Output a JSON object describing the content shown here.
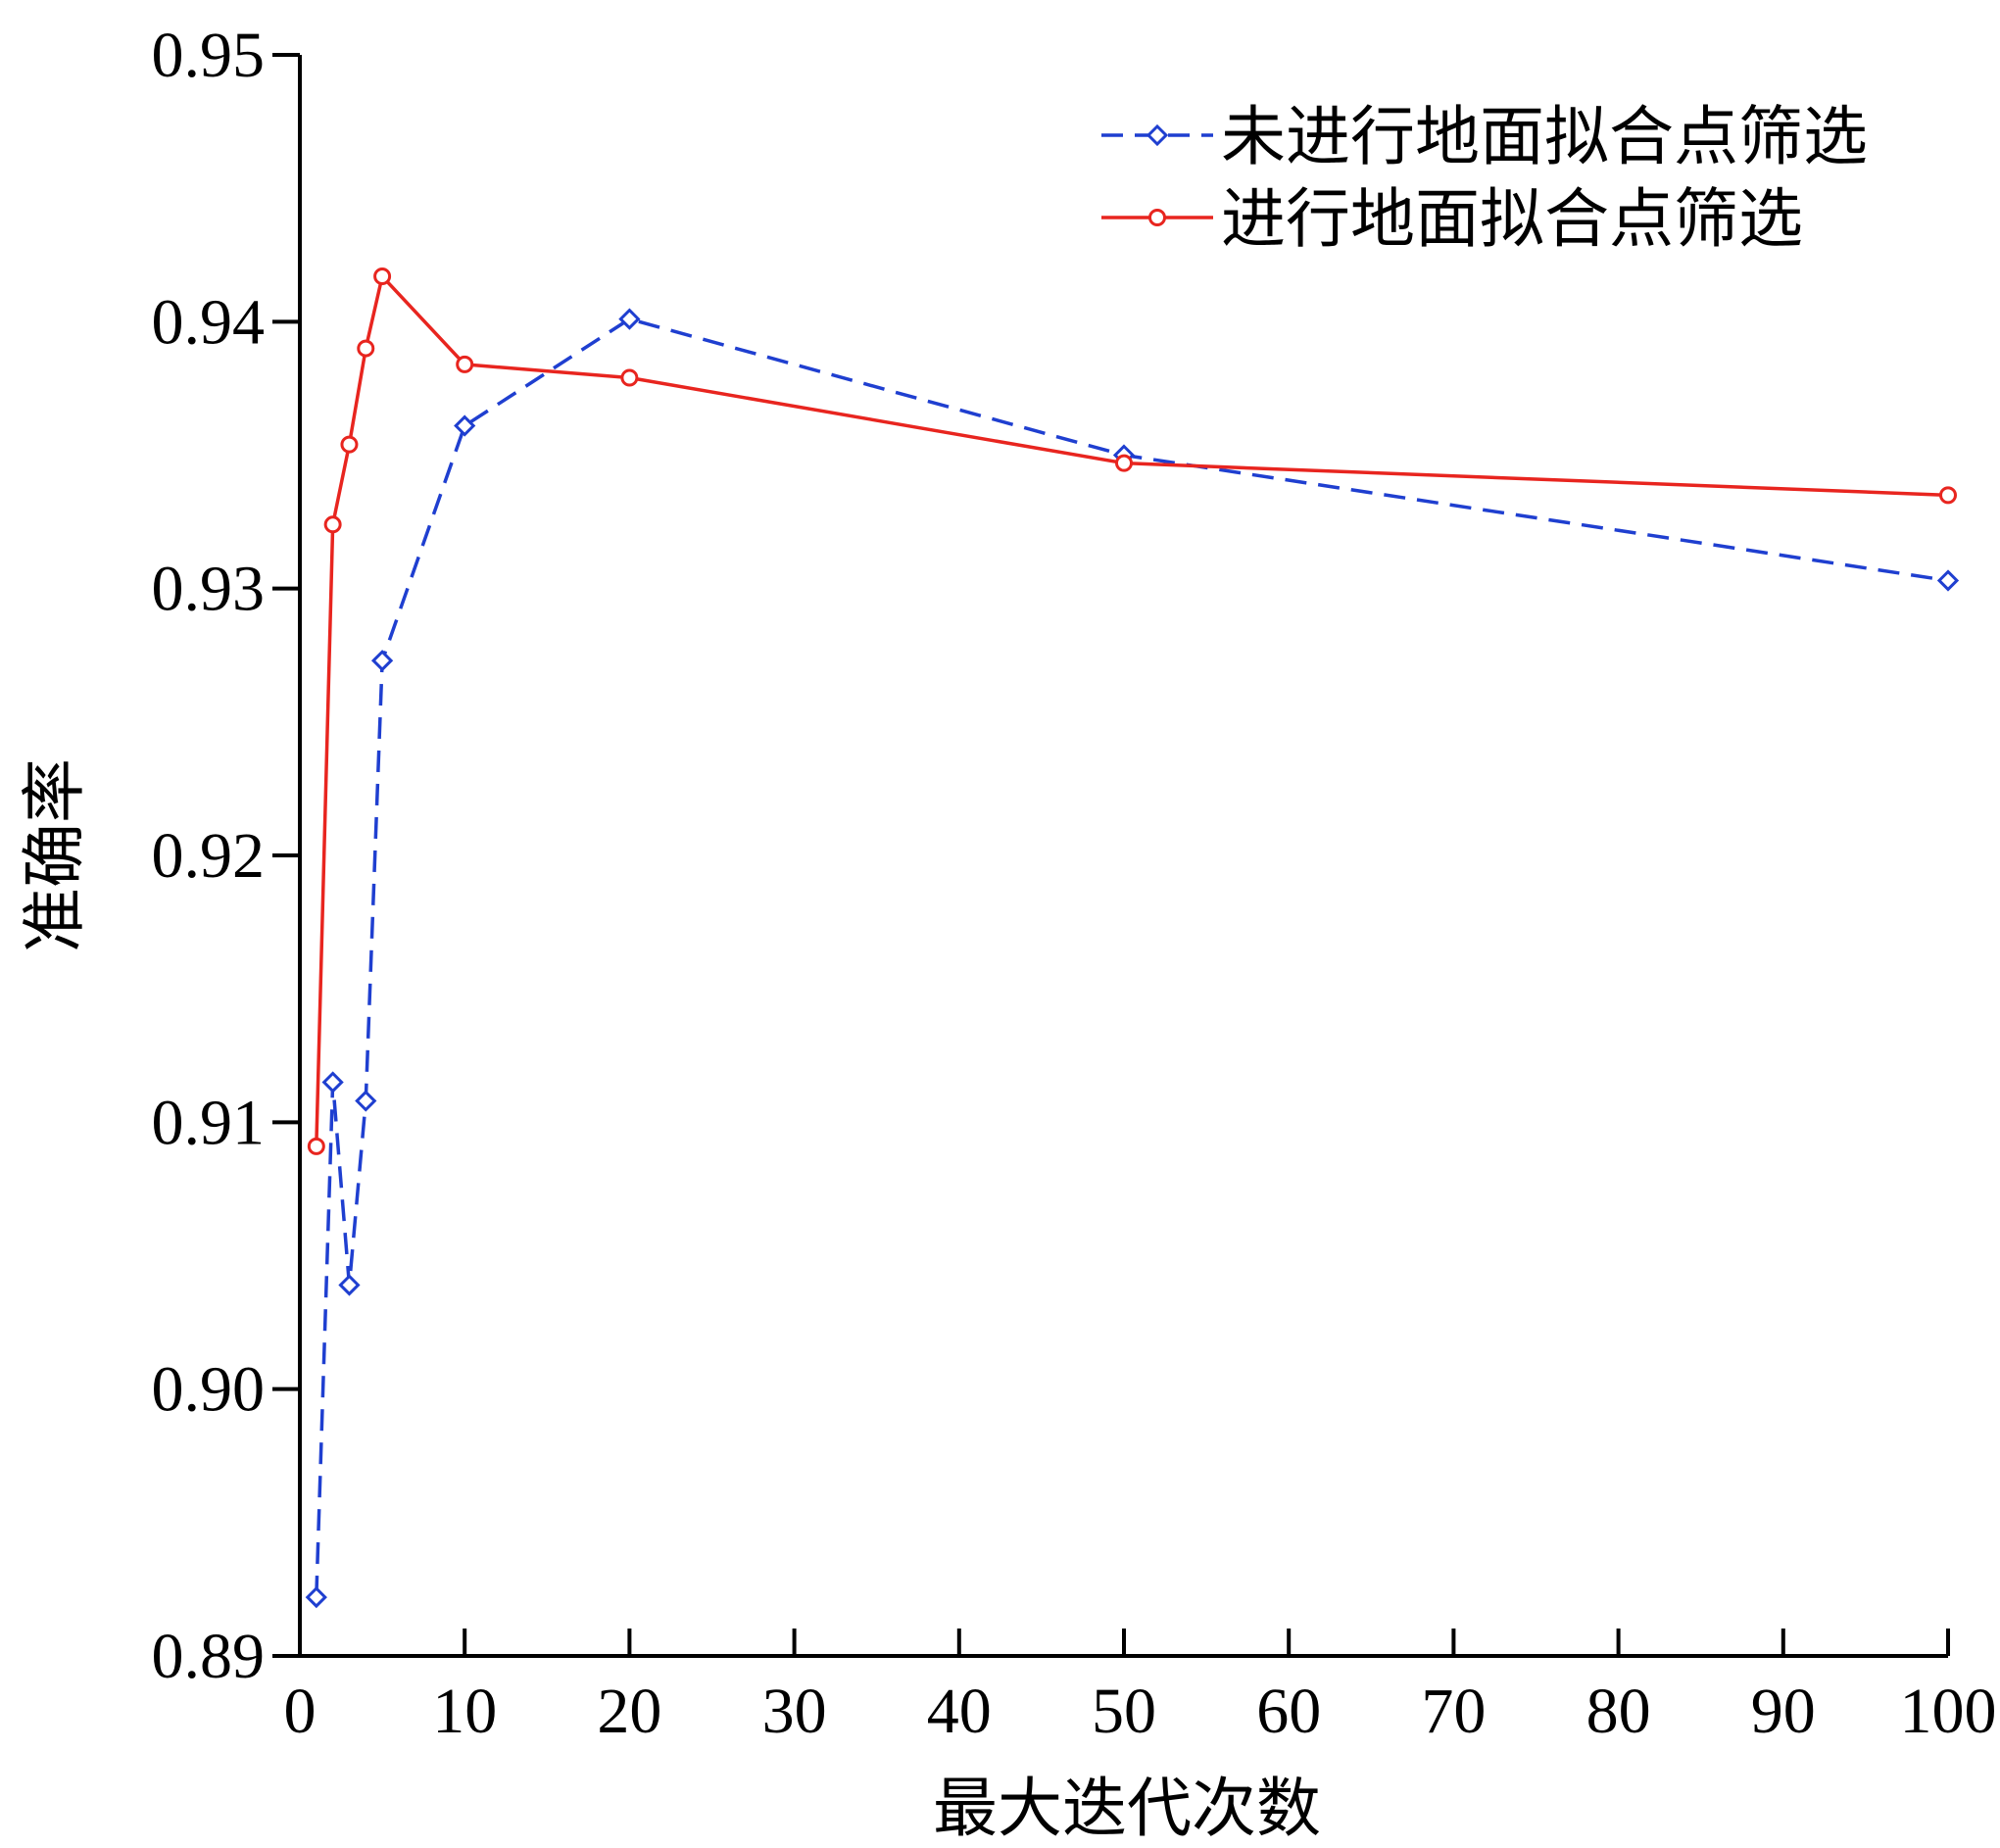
{
  "chart_data": {
    "type": "line",
    "title": "",
    "xlabel": "最大迭代次数",
    "ylabel": "准确率",
    "xlim": [
      0,
      100
    ],
    "ylim": [
      0.89,
      0.95
    ],
    "xticks": [
      0,
      10,
      20,
      30,
      40,
      50,
      60,
      70,
      80,
      90,
      100
    ],
    "xtick_labels": [
      "0",
      "10",
      "20",
      "30",
      "40",
      "50",
      "60",
      "70",
      "80",
      "90",
      "100"
    ],
    "yticks": [
      0.89,
      0.9,
      0.91,
      0.92,
      0.93,
      0.94,
      0.95
    ],
    "ytick_labels": [
      "0.89",
      "0.90",
      "0.91",
      "0.92",
      "0.93",
      "0.94",
      "0.95"
    ],
    "grid": false,
    "legend_position": "top-right",
    "series": [
      {
        "name": "未进行地面拟合点筛选",
        "color": "#1f3fd0",
        "line_style": "dashed",
        "marker": "diamond",
        "x": [
          1,
          2,
          3,
          4,
          5,
          10,
          20,
          50,
          100
        ],
        "y": [
          0.8922,
          0.9115,
          0.9039,
          0.9108,
          0.9273,
          0.9361,
          0.9401,
          0.935,
          0.9303
        ]
      },
      {
        "name": "进行地面拟合点筛选",
        "color": "#e8251f",
        "line_style": "solid",
        "marker": "circle",
        "x": [
          1,
          2,
          3,
          4,
          5,
          10,
          20,
          50,
          100
        ],
        "y": [
          0.9091,
          0.9324,
          0.9354,
          0.939,
          0.9417,
          0.9384,
          0.9379,
          0.9347,
          0.9335
        ]
      }
    ]
  }
}
